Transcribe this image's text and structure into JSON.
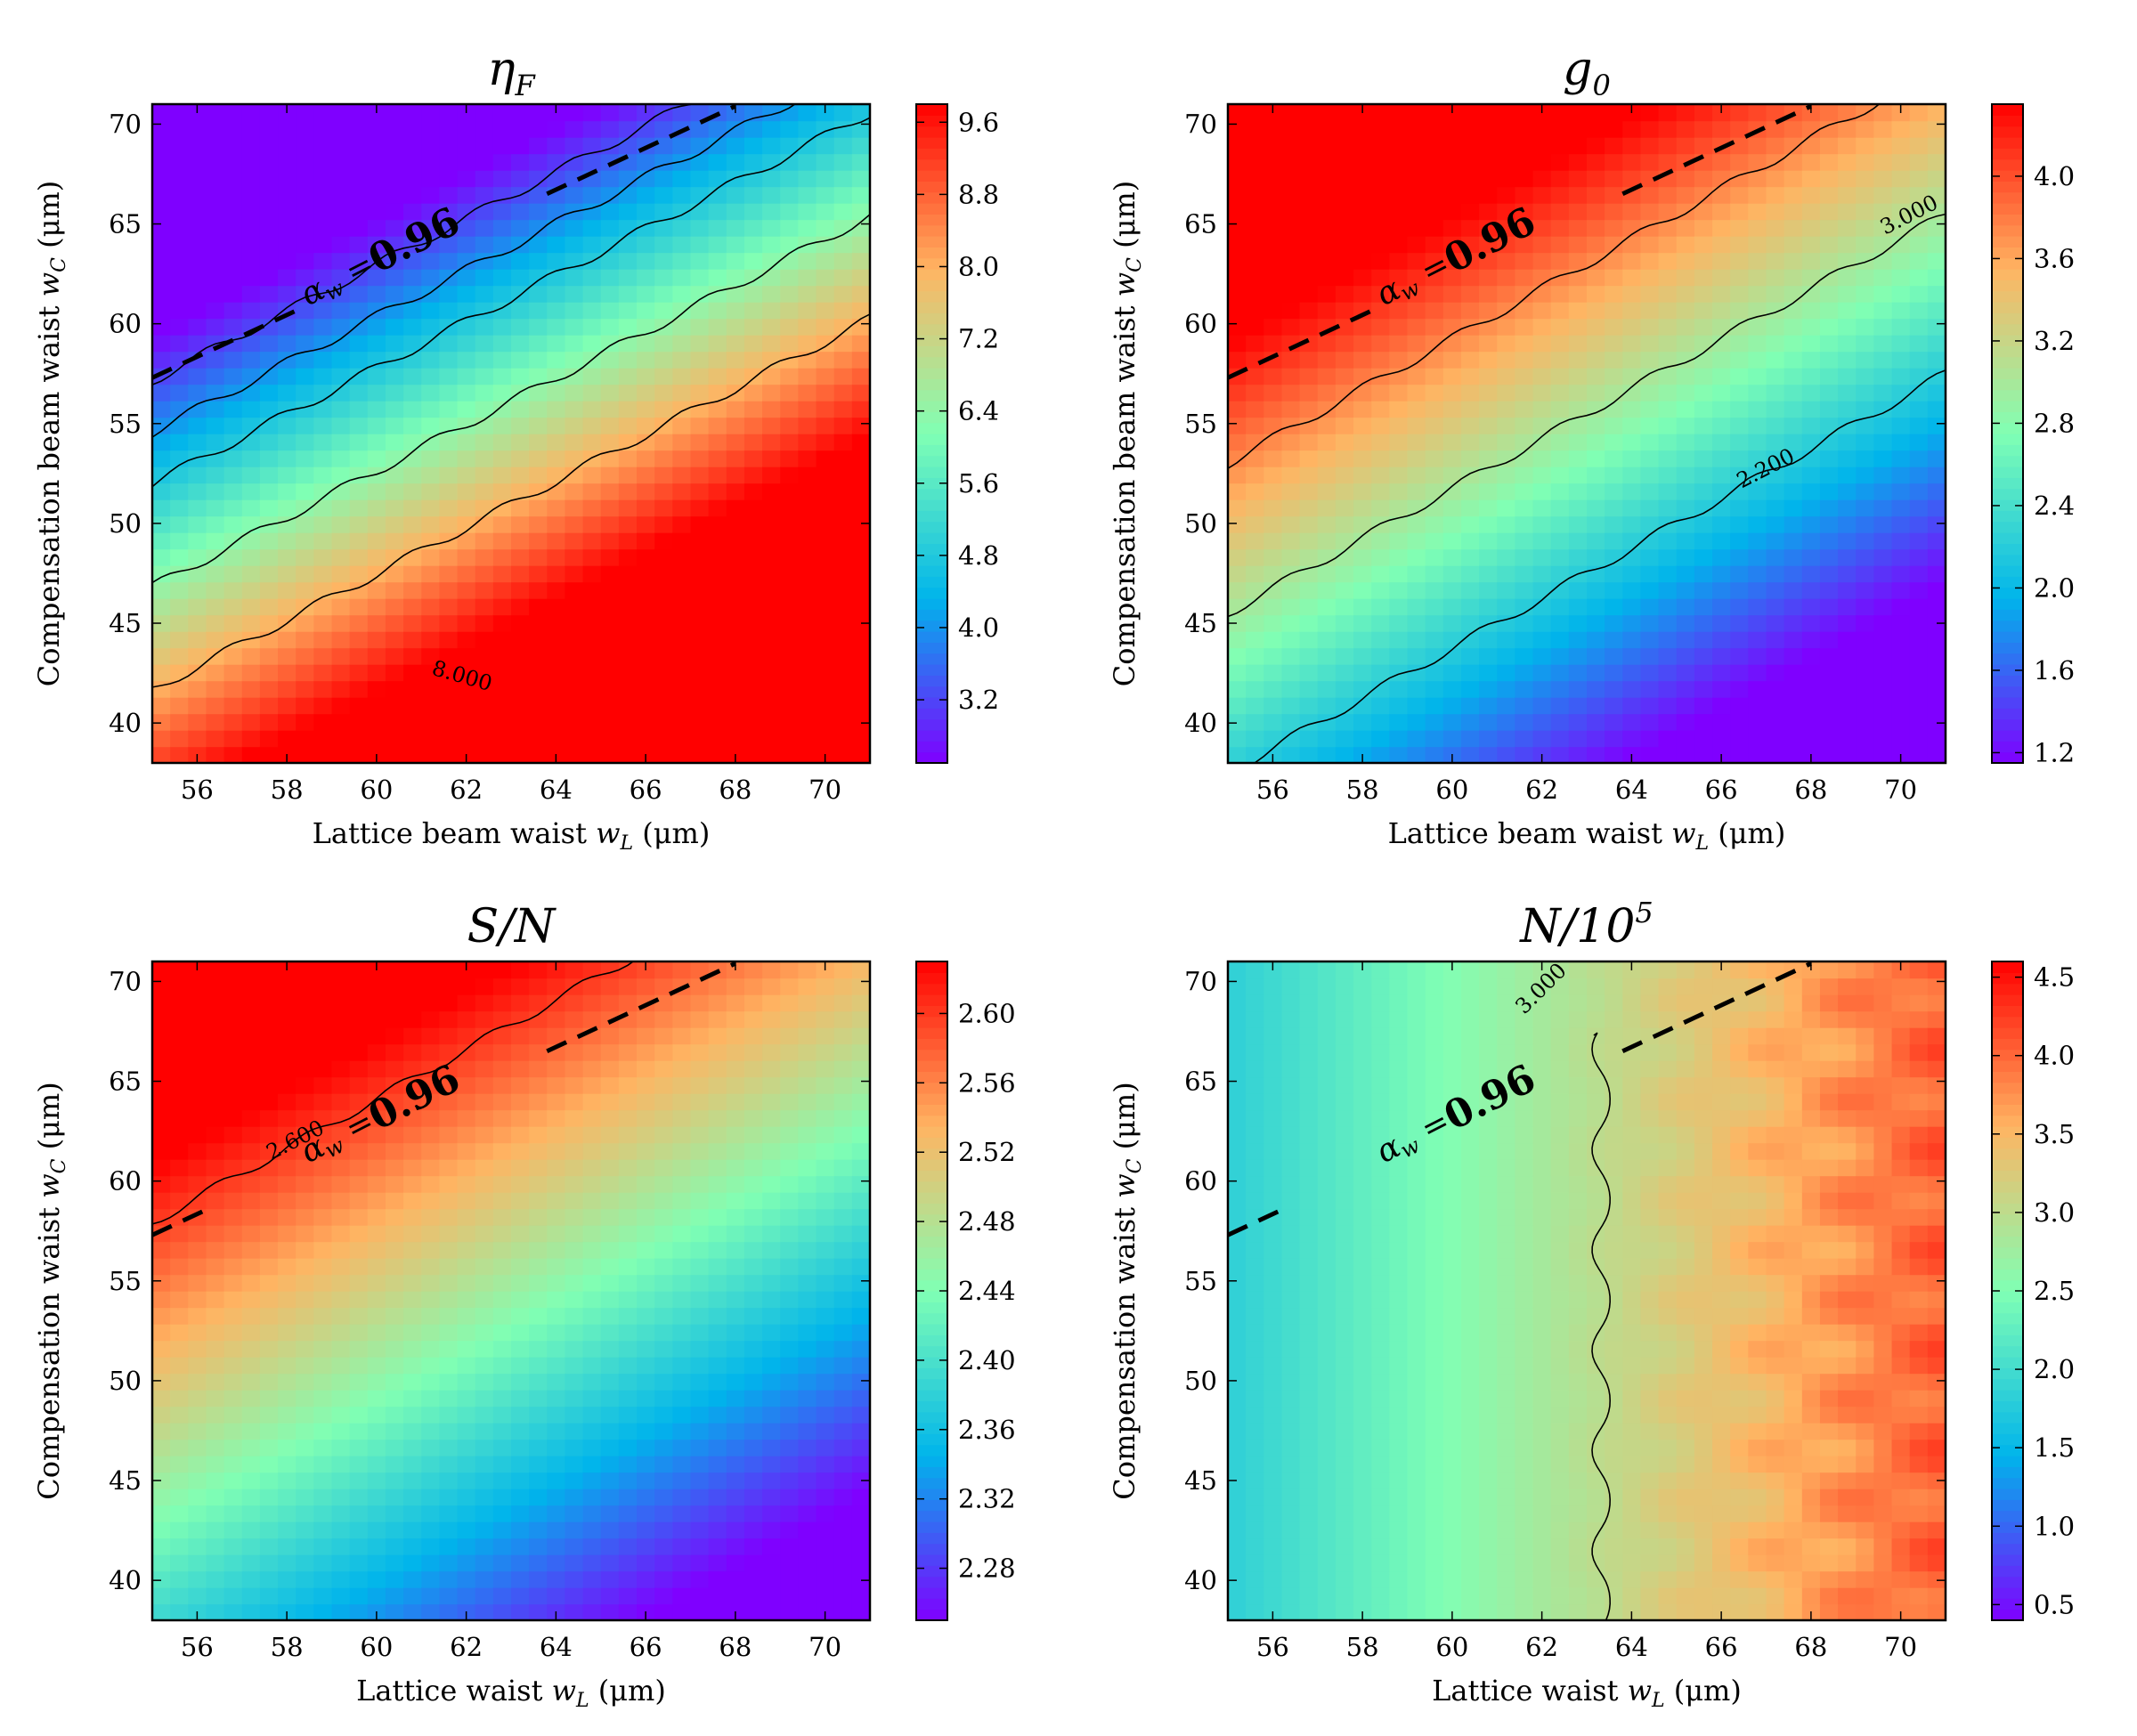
{
  "chart_data": [
    {
      "type": "heatmap",
      "title": "ηF",
      "title_main": "η",
      "title_sub": "F",
      "xlabel": "Lattice beam waist wL (μm)",
      "ylabel": "Compensation beam waist wC (μm)",
      "xlim": [
        55,
        71
      ],
      "ylim": [
        38,
        71
      ],
      "xticks": [
        56,
        58,
        60,
        62,
        64,
        66,
        68,
        70
      ],
      "yticks": [
        40,
        45,
        50,
        55,
        60,
        65,
        70
      ],
      "colorbar": {
        "range": [
          2.5,
          9.8
        ],
        "ticks": [
          "3.2",
          "4.0",
          "4.8",
          "5.6",
          "6.4",
          "7.2",
          "8.0",
          "8.8",
          "9.6"
        ]
      },
      "field": {
        "base": 6.9,
        "grad_x": 0.36,
        "grad_y": -0.31,
        "ref_x": 63,
        "ref_y": 54.5,
        "ripple": 0.0
      },
      "contour_levels": [
        3.2,
        4.0,
        4.8,
        6.4,
        8.0
      ],
      "contour_labels": [
        {
          "level": 8.0,
          "text": "8.000",
          "x": 61.9,
          "y": 42.3,
          "angle": 16
        }
      ],
      "reference_line": {
        "label": "αw = 0.96",
        "alpha_label": "αw",
        "eq_label": "=",
        "value_label": "0.96",
        "x0": 55,
        "y0": 57.3,
        "x1": 68,
        "y1": 70.9,
        "gap": [
          58.3,
          63.8
        ],
        "label_x": 60.1,
        "label_y": 63.2,
        "angle": -27
      }
    },
    {
      "type": "heatmap",
      "title": "g0",
      "title_main": "g",
      "title_sub": "0",
      "xlabel": "Lattice beam waist wL (μm)",
      "ylabel": "Compensation beam waist wC (μm)",
      "xlim": [
        55,
        71
      ],
      "ylim": [
        38,
        71
      ],
      "xticks": [
        56,
        58,
        60,
        62,
        64,
        66,
        68,
        70
      ],
      "yticks": [
        40,
        45,
        50,
        55,
        60,
        65,
        70
      ],
      "colorbar": {
        "range": [
          1.15,
          4.35
        ],
        "ticks": [
          "1.2",
          "1.6",
          "2.0",
          "2.4",
          "2.8",
          "3.2",
          "3.6",
          "4.0"
        ]
      },
      "field": {
        "base": 2.9,
        "grad_x": -0.125,
        "grad_y": 0.1,
        "ref_x": 63,
        "ref_y": 54.5,
        "ripple": 0.0
      },
      "contour_levels": [
        2.2,
        3.0,
        3.75
      ],
      "contour_labels": [
        {
          "level": 3.0,
          "text": "3.000",
          "x": 70.2,
          "y": 65.4,
          "angle": -27
        },
        {
          "level": 2.2,
          "text": "2.200",
          "x": 67.0,
          "y": 52.7,
          "angle": -27
        }
      ],
      "reference_line": {
        "label": "αw = 0.96",
        "alpha_label": "αw",
        "eq_label": "=",
        "value_label": "0.96",
        "x0": 55,
        "y0": 57.3,
        "x1": 68,
        "y1": 70.9,
        "gap": [
          58.3,
          63.8
        ],
        "label_x": 60.1,
        "label_y": 63.2,
        "angle": -27
      }
    },
    {
      "type": "heatmap",
      "title": "S/N",
      "title_main": "S/N",
      "title_sub": "",
      "xlabel": "Lattice waist wL (μm)",
      "ylabel": "Compensation waist wC (μm)",
      "xlim": [
        55,
        71
      ],
      "ylim": [
        38,
        71
      ],
      "xticks": [
        56,
        58,
        60,
        62,
        64,
        66,
        68,
        70
      ],
      "yticks": [
        40,
        45,
        50,
        55,
        60,
        65,
        70
      ],
      "colorbar": {
        "range": [
          2.25,
          2.63
        ],
        "ticks": [
          "2.28",
          "2.32",
          "2.36",
          "2.40",
          "2.44",
          "2.48",
          "2.52",
          "2.56",
          "2.60"
        ]
      },
      "field": {
        "base": 2.46,
        "grad_x": -0.013,
        "grad_y": 0.0105,
        "ref_x": 63,
        "ref_y": 54.5,
        "ripple": 0.0
      },
      "contour_levels": [
        2.6
      ],
      "contour_labels": [
        {
          "level": 2.6,
          "text": "2.600",
          "x": 58.2,
          "y": 62.0,
          "angle": -27
        }
      ],
      "reference_line": {
        "label": "αw = 0.96",
        "alpha_label": "αw",
        "eq_label": "=",
        "value_label": "0.96",
        "x0": 55,
        "y0": 57.3,
        "x1": 68,
        "y1": 70.9,
        "gap": [
          56.3,
          63.8
        ],
        "label_x": 60.1,
        "label_y": 63.2,
        "angle": -27
      }
    },
    {
      "type": "heatmap",
      "title": "N/10^5",
      "title_main": "N/10",
      "title_sub": "5",
      "xlabel": "Lattice waist wL (μm)",
      "ylabel": "Compensation waist wC (μm)",
      "xlim": [
        55,
        71
      ],
      "ylim": [
        38,
        71
      ],
      "xticks": [
        56,
        58,
        60,
        62,
        64,
        66,
        68,
        70
      ],
      "yticks": [
        40,
        45,
        50,
        55,
        60,
        65,
        70
      ],
      "colorbar": {
        "range": [
          0.4,
          4.6
        ],
        "ticks": [
          "0.5",
          "1.0",
          "1.5",
          "2.0",
          "2.5",
          "3.0",
          "3.5",
          "4.0",
          "4.5"
        ]
      },
      "field": {
        "base": 2.95,
        "grad_x": 0.14,
        "grad_y": 0.0,
        "ref_x": 63,
        "ref_y": 54.5,
        "ripple": 0.2
      },
      "contour_levels": [
        3.0
      ],
      "contour_labels": [
        {
          "level": 3.0,
          "text": "3.000",
          "x": 62.0,
          "y": 69.6,
          "angle": -45
        }
      ],
      "reference_line": {
        "label": "αw = 0.96",
        "alpha_label": "αw",
        "eq_label": "=",
        "value_label": "0.96",
        "x0": 55,
        "y0": 57.3,
        "x1": 68,
        "y1": 70.9,
        "gap": [
          56.3,
          63.8
        ],
        "label_x": 60.1,
        "label_y": 63.2,
        "angle": -27
      }
    }
  ],
  "axis_text": {
    "ylabel_parts": [
      {
        "pre": "Compensation beam waist ",
        "sym": "w",
        "sub": "C",
        "post": " (μm)"
      },
      {
        "pre": "Compensation beam waist ",
        "sym": "w",
        "sub": "C",
        "post": " (μm)"
      },
      {
        "pre": "Compensation waist ",
        "sym": "w",
        "sub": "C",
        "post": " (μm)"
      },
      {
        "pre": "Compensation waist ",
        "sym": "w",
        "sub": "C",
        "post": " (μm)"
      }
    ],
    "xlabel_parts": [
      {
        "pre": "Lattice beam waist ",
        "sym": "w",
        "sub": "L",
        "post": " (μm)"
      },
      {
        "pre": "Lattice beam waist ",
        "sym": "w",
        "sub": "L",
        "post": " (μm)"
      },
      {
        "pre": "Lattice waist ",
        "sym": "w",
        "sub": "L",
        "post": " (μm)"
      },
      {
        "pre": "Lattice waist ",
        "sym": "w",
        "sub": "L",
        "post": " (μm)"
      }
    ]
  }
}
